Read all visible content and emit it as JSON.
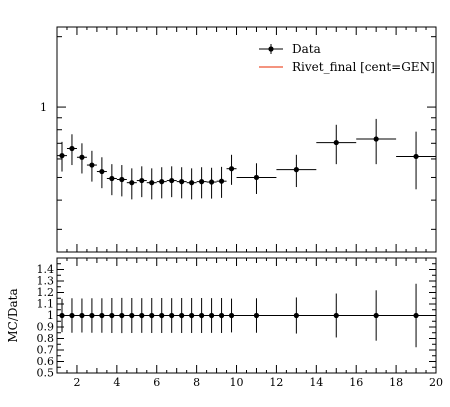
{
  "chart_data": [
    {
      "type": "scatter",
      "panel": "main",
      "title": "",
      "xlabel": "",
      "ylabel": "",
      "yscale": "log",
      "xlim": [
        1,
        20
      ],
      "ylim": [
        0.24,
        2.2
      ],
      "yticklabels": [
        {
          "value": 1,
          "label": "1"
        }
      ],
      "legend_position": "top-right",
      "series": [
        {
          "name": "Data",
          "color": "#000000",
          "marker": "circle",
          "points": [
            {
              "x": 1.25,
              "xerr": 0.25,
              "y": 0.62,
              "yerr": 0.09
            },
            {
              "x": 1.75,
              "xerr": 0.25,
              "y": 0.665,
              "yerr": 0.1
            },
            {
              "x": 2.25,
              "xerr": 0.25,
              "y": 0.61,
              "yerr": 0.09
            },
            {
              "x": 2.75,
              "xerr": 0.25,
              "y": 0.565,
              "yerr": 0.085
            },
            {
              "x": 3.25,
              "xerr": 0.25,
              "y": 0.53,
              "yerr": 0.08
            },
            {
              "x": 3.75,
              "xerr": 0.25,
              "y": 0.495,
              "yerr": 0.075
            },
            {
              "x": 4.25,
              "xerr": 0.25,
              "y": 0.49,
              "yerr": 0.075
            },
            {
              "x": 4.75,
              "xerr": 0.25,
              "y": 0.475,
              "yerr": 0.072
            },
            {
              "x": 5.25,
              "xerr": 0.25,
              "y": 0.485,
              "yerr": 0.073
            },
            {
              "x": 5.75,
              "xerr": 0.25,
              "y": 0.475,
              "yerr": 0.072
            },
            {
              "x": 6.25,
              "xerr": 0.25,
              "y": 0.48,
              "yerr": 0.073
            },
            {
              "x": 6.75,
              "xerr": 0.25,
              "y": 0.485,
              "yerr": 0.073
            },
            {
              "x": 7.25,
              "xerr": 0.25,
              "y": 0.48,
              "yerr": 0.073
            },
            {
              "x": 7.75,
              "xerr": 0.25,
              "y": 0.475,
              "yerr": 0.072
            },
            {
              "x": 8.25,
              "xerr": 0.25,
              "y": 0.48,
              "yerr": 0.073
            },
            {
              "x": 8.75,
              "xerr": 0.25,
              "y": 0.478,
              "yerr": 0.072
            },
            {
              "x": 9.25,
              "xerr": 0.25,
              "y": 0.482,
              "yerr": 0.073
            },
            {
              "x": 9.75,
              "xerr": 0.25,
              "y": 0.545,
              "yerr": 0.08
            },
            {
              "x": 11,
              "xerr": 1,
              "y": 0.5,
              "yerr": 0.075
            },
            {
              "x": 13,
              "xerr": 1,
              "y": 0.54,
              "yerr": 0.085
            },
            {
              "x": 15,
              "xerr": 1,
              "y": 0.705,
              "yerr": 0.135
            },
            {
              "x": 17,
              "xerr": 1,
              "y": 0.73,
              "yerr": 0.16
            },
            {
              "x": 19,
              "xerr": 1,
              "y": 0.615,
              "yerr": 0.17
            }
          ]
        },
        {
          "name": "Rivet_final [cent=GEN]",
          "color": "#ee5533",
          "marker": "line",
          "points": []
        }
      ]
    },
    {
      "type": "scatter",
      "panel": "ratio",
      "title": "",
      "xlabel": "",
      "ylabel": "MC/Data",
      "xlim": [
        1,
        20
      ],
      "ylim": [
        0.5,
        1.5
      ],
      "xticklabels": [
        "2",
        "4",
        "6",
        "8",
        "10",
        "12",
        "14",
        "16",
        "18",
        "20"
      ],
      "yticklabels": [
        "0.5",
        "0.6",
        "0.7",
        "0.8",
        "0.9",
        "1",
        "1.1",
        "1.2",
        "1.3",
        "1.4"
      ],
      "reference_line": 1,
      "series": [
        {
          "name": "Data",
          "color": "#000000",
          "marker": "circle",
          "points": [
            {
              "x": 1.25,
              "xerr": 0.25,
              "y": 1,
              "yerr": 0.145
            },
            {
              "x": 1.75,
              "xerr": 0.25,
              "y": 1,
              "yerr": 0.15
            },
            {
              "x": 2.25,
              "xerr": 0.25,
              "y": 1,
              "yerr": 0.148
            },
            {
              "x": 2.75,
              "xerr": 0.25,
              "y": 1,
              "yerr": 0.15
            },
            {
              "x": 3.25,
              "xerr": 0.25,
              "y": 1,
              "yerr": 0.15
            },
            {
              "x": 3.75,
              "xerr": 0.25,
              "y": 1,
              "yerr": 0.152
            },
            {
              "x": 4.25,
              "xerr": 0.25,
              "y": 1,
              "yerr": 0.153
            },
            {
              "x": 4.75,
              "xerr": 0.25,
              "y": 1,
              "yerr": 0.152
            },
            {
              "x": 5.25,
              "xerr": 0.25,
              "y": 1,
              "yerr": 0.151
            },
            {
              "x": 5.75,
              "xerr": 0.25,
              "y": 1,
              "yerr": 0.152
            },
            {
              "x": 6.25,
              "xerr": 0.25,
              "y": 1,
              "yerr": 0.152
            },
            {
              "x": 6.75,
              "xerr": 0.25,
              "y": 1,
              "yerr": 0.151
            },
            {
              "x": 7.25,
              "xerr": 0.25,
              "y": 1,
              "yerr": 0.152
            },
            {
              "x": 7.75,
              "xerr": 0.25,
              "y": 1,
              "yerr": 0.152
            },
            {
              "x": 8.25,
              "xerr": 0.25,
              "y": 1,
              "yerr": 0.152
            },
            {
              "x": 8.75,
              "xerr": 0.25,
              "y": 1,
              "yerr": 0.151
            },
            {
              "x": 9.25,
              "xerr": 0.25,
              "y": 1,
              "yerr": 0.152
            },
            {
              "x": 9.75,
              "xerr": 0.25,
              "y": 1,
              "yerr": 0.147
            },
            {
              "x": 11,
              "xerr": 1,
              "y": 1,
              "yerr": 0.15
            },
            {
              "x": 13,
              "xerr": 1,
              "y": 1,
              "yerr": 0.157
            },
            {
              "x": 15,
              "xerr": 1,
              "y": 1,
              "yerr": 0.191
            },
            {
              "x": 17,
              "xerr": 1,
              "y": 1,
              "yerr": 0.219
            },
            {
              "x": 19,
              "xerr": 1,
              "y": 1,
              "yerr": 0.276
            }
          ]
        }
      ]
    }
  ]
}
